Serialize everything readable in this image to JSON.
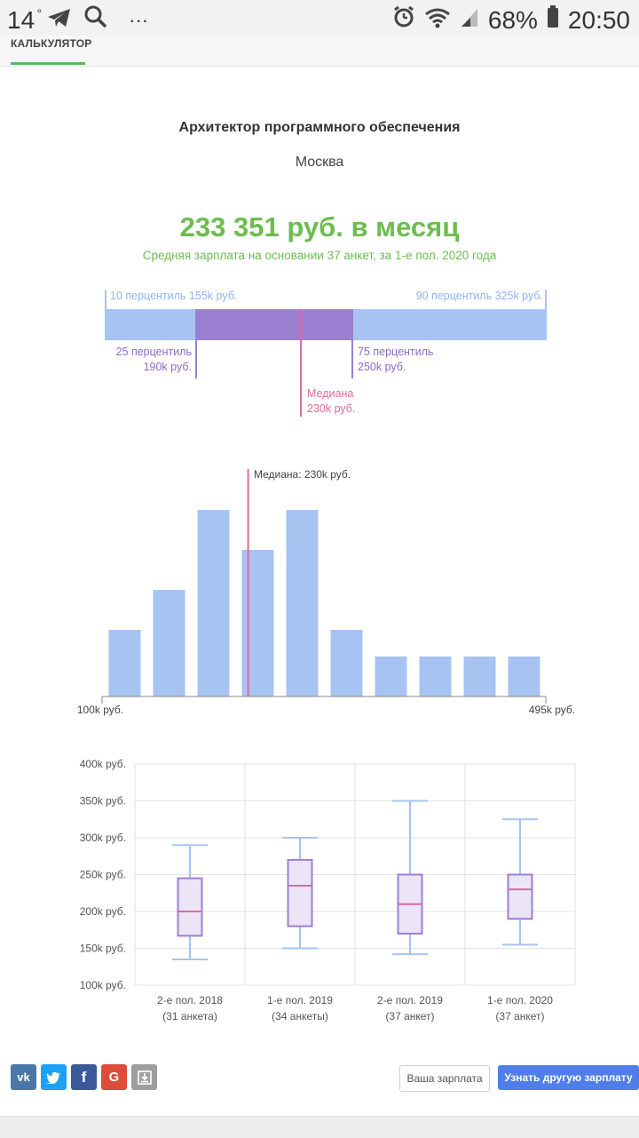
{
  "status_bar": {
    "temperature": "14",
    "degree": "°",
    "more_dots": "···",
    "battery_percent": "68%",
    "time": "20:50"
  },
  "tabs": {
    "active_label": "КАЛЬКУЛЯТОР"
  },
  "header": {
    "job_title": "Архитектор программного обеспечения",
    "city": "Москва",
    "salary": "233 351 руб. в месяц",
    "salary_note": "Средняя зарплата на основании 37 анкет, за 1-е пол. 2020 года"
  },
  "percentiles": {
    "p10_label": "10 перцентиль 155k руб.",
    "p90_label": "90 перцентиль 325k руб.",
    "p25_line1": "25 перцентиль",
    "p25_line2": "190k руб.",
    "p75_line1": "75 перцентиль",
    "p75_line2": "250k руб.",
    "median_line1": "Медиана",
    "median_line2": "230k руб.",
    "values": {
      "p10": 155,
      "p25": 190,
      "median": 230,
      "p75": 250,
      "p90": 325
    },
    "colors": {
      "outer": "#a7c3f2",
      "inner": "#9b7fd1",
      "median": "#dd6b9a",
      "label_outer": "#8fb4ec",
      "label_inner": "#8b6cc8"
    }
  },
  "histogram": {
    "median_label": "Медиана: 230k руб.",
    "x_min_label": "100k руб.",
    "x_max_label": "495k руб.",
    "bar_color": "#a7c3f2",
    "median_color": "#dd6b9a"
  },
  "boxplot": {
    "y_ticks": [
      "400k руб.",
      "350k руб.",
      "300k руб.",
      "250k руб.",
      "200k руб.",
      "150k руб.",
      "100k руб."
    ],
    "categories": [
      {
        "line1": "2-е пол. 2018",
        "line2": "(31 анкета)"
      },
      {
        "line1": "1-е пол. 2019",
        "line2": "(34 анкеты)"
      },
      {
        "line1": "2-е пол. 2019",
        "line2": "(37 анкет)"
      },
      {
        "line1": "1-е пол. 2020",
        "line2": "(37 анкет)"
      }
    ]
  },
  "chart_data": [
    {
      "type": "bar",
      "x_range_labels": [
        "100k руб.",
        "495k руб."
      ],
      "xlim": [
        100,
        495
      ],
      "bin_count": 10,
      "values": [
        2.5,
        4,
        7,
        5.5,
        7,
        2.5,
        1.5,
        1.5,
        1.5,
        1.5
      ],
      "median": 230,
      "annotations": [
        "Медиана: 230k руб."
      ],
      "grid": false
    },
    {
      "type": "box",
      "categories": [
        "2-е пол. 2018 (31 анкета)",
        "1-е пол. 2019 (34 анкеты)",
        "2-е пол. 2019 (37 анкет)",
        "1-е пол. 2020 (37 анкет)"
      ],
      "ylim": [
        100,
        400
      ],
      "series": [
        {
          "min": 135,
          "q1": 167,
          "median": 200,
          "q3": 245,
          "max": 290
        },
        {
          "min": 150,
          "q1": 180,
          "median": 235,
          "q3": 270,
          "max": 300
        },
        {
          "min": 142,
          "q1": 170,
          "median": 210,
          "q3": 250,
          "max": 350
        },
        {
          "min": 155,
          "q1": 190,
          "median": 230,
          "q3": 250,
          "max": 325
        }
      ],
      "grid": true
    }
  ],
  "footer": {
    "share": [
      {
        "icon": "vk-icon",
        "label": "vk",
        "color": "#4a76a8"
      },
      {
        "icon": "twitter-icon",
        "label": "",
        "color": "#1da1f2"
      },
      {
        "icon": "facebook-icon",
        "label": "f",
        "color": "#3b5998"
      },
      {
        "icon": "google-icon",
        "label": "G",
        "color": "#dd4b39"
      },
      {
        "icon": "download-icon",
        "label": "",
        "color": "#9e9e9e"
      }
    ],
    "your_salary_button": "Ваша зарплата",
    "other_salary_button": "Узнать другую зарплату"
  }
}
